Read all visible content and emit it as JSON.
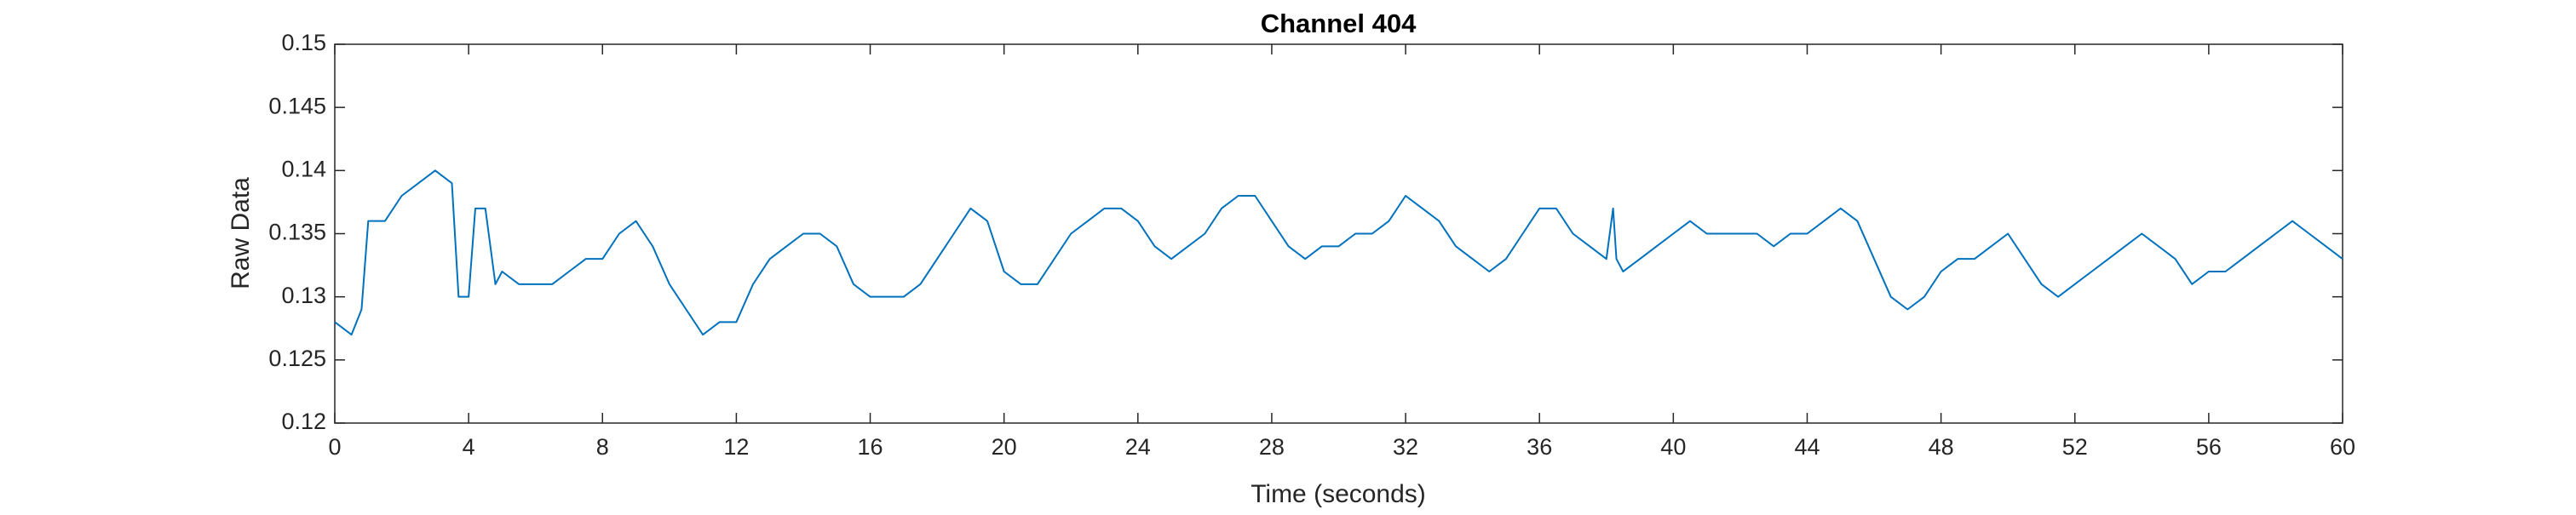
{
  "chart_data": {
    "type": "line",
    "title": "Channel 404",
    "x_label": "Time (seconds)",
    "y_label": "Raw Data",
    "x": [
      0,
      0.5,
      0.8,
      1,
      1.5,
      2,
      2.5,
      3,
      3.5,
      3.7,
      4,
      4.2,
      4.5,
      4.8,
      5,
      5.5,
      6,
      6.5,
      7,
      7.5,
      8,
      8.5,
      9,
      9.5,
      10,
      10.5,
      11,
      11.5,
      12,
      12.5,
      13,
      13.5,
      14,
      14.5,
      15,
      15.5,
      16,
      16.5,
      17,
      17.5,
      18,
      18.5,
      19,
      19.5,
      20,
      20.5,
      21,
      21.5,
      22,
      22.5,
      23,
      23.5,
      24,
      24.5,
      25,
      25.5,
      26,
      26.5,
      27,
      27.5,
      28,
      28.5,
      29,
      29.5,
      30,
      30.5,
      31,
      31.5,
      32,
      32.5,
      33,
      33.5,
      34,
      34.5,
      35,
      35.5,
      36,
      36.5,
      37,
      37.5,
      38,
      38.2,
      38.3,
      38.5,
      39,
      39.5,
      40,
      40.5,
      41,
      41.5,
      42,
      42.5,
      43,
      43.5,
      44,
      44.5,
      45,
      45.5,
      46,
      46.5,
      47,
      47.5,
      48,
      48.5,
      49,
      49.5,
      50,
      50.5,
      51,
      51.5,
      52,
      52.5,
      53,
      53.5,
      54,
      54.5,
      55,
      55.5,
      56,
      56.5,
      57,
      57.5,
      58,
      58.5,
      59,
      59.5,
      60
    ],
    "series": [
      {
        "color": "#0072bd",
        "values": [
          0.128,
          0.127,
          0.129,
          0.136,
          0.136,
          0.138,
          0.139,
          0.14,
          0.139,
          0.13,
          0.13,
          0.137,
          0.137,
          0.131,
          0.132,
          0.131,
          0.131,
          0.131,
          0.132,
          0.133,
          0.133,
          0.135,
          0.136,
          0.134,
          0.131,
          0.129,
          0.127,
          0.128,
          0.128,
          0.131,
          0.133,
          0.134,
          0.135,
          0.135,
          0.134,
          0.131,
          0.13,
          0.13,
          0.13,
          0.131,
          0.133,
          0.135,
          0.137,
          0.136,
          0.132,
          0.131,
          0.131,
          0.133,
          0.135,
          0.136,
          0.137,
          0.137,
          0.136,
          0.134,
          0.133,
          0.134,
          0.135,
          0.137,
          0.138,
          0.138,
          0.136,
          0.134,
          0.133,
          0.134,
          0.134,
          0.135,
          0.135,
          0.136,
          0.138,
          0.137,
          0.136,
          0.134,
          0.133,
          0.132,
          0.133,
          0.135,
          0.137,
          0.137,
          0.135,
          0.134,
          0.133,
          0.137,
          0.133,
          0.132,
          0.133,
          0.134,
          0.135,
          0.136,
          0.135,
          0.135,
          0.135,
          0.135,
          0.134,
          0.135,
          0.135,
          0.136,
          0.137,
          0.136,
          0.133,
          0.13,
          0.129,
          0.13,
          0.132,
          0.133,
          0.133,
          0.134,
          0.135,
          0.133,
          0.131,
          0.13,
          0.131,
          0.132,
          0.133,
          0.134,
          0.135,
          0.134,
          0.133,
          0.131,
          0.132,
          0.132,
          0.133,
          0.134,
          0.135,
          0.136,
          0.135,
          0.134,
          0.133
        ]
      }
    ],
    "xlim": [
      0,
      60
    ],
    "xticks": [
      0,
      4,
      8,
      12,
      16,
      20,
      24,
      28,
      32,
      36,
      40,
      44,
      48,
      52,
      56,
      60
    ],
    "ylim": [
      0.12,
      0.15
    ],
    "yticks": [
      0.12,
      0.125,
      0.13,
      0.135,
      0.14,
      0.145,
      0.15
    ],
    "grid": false
  }
}
